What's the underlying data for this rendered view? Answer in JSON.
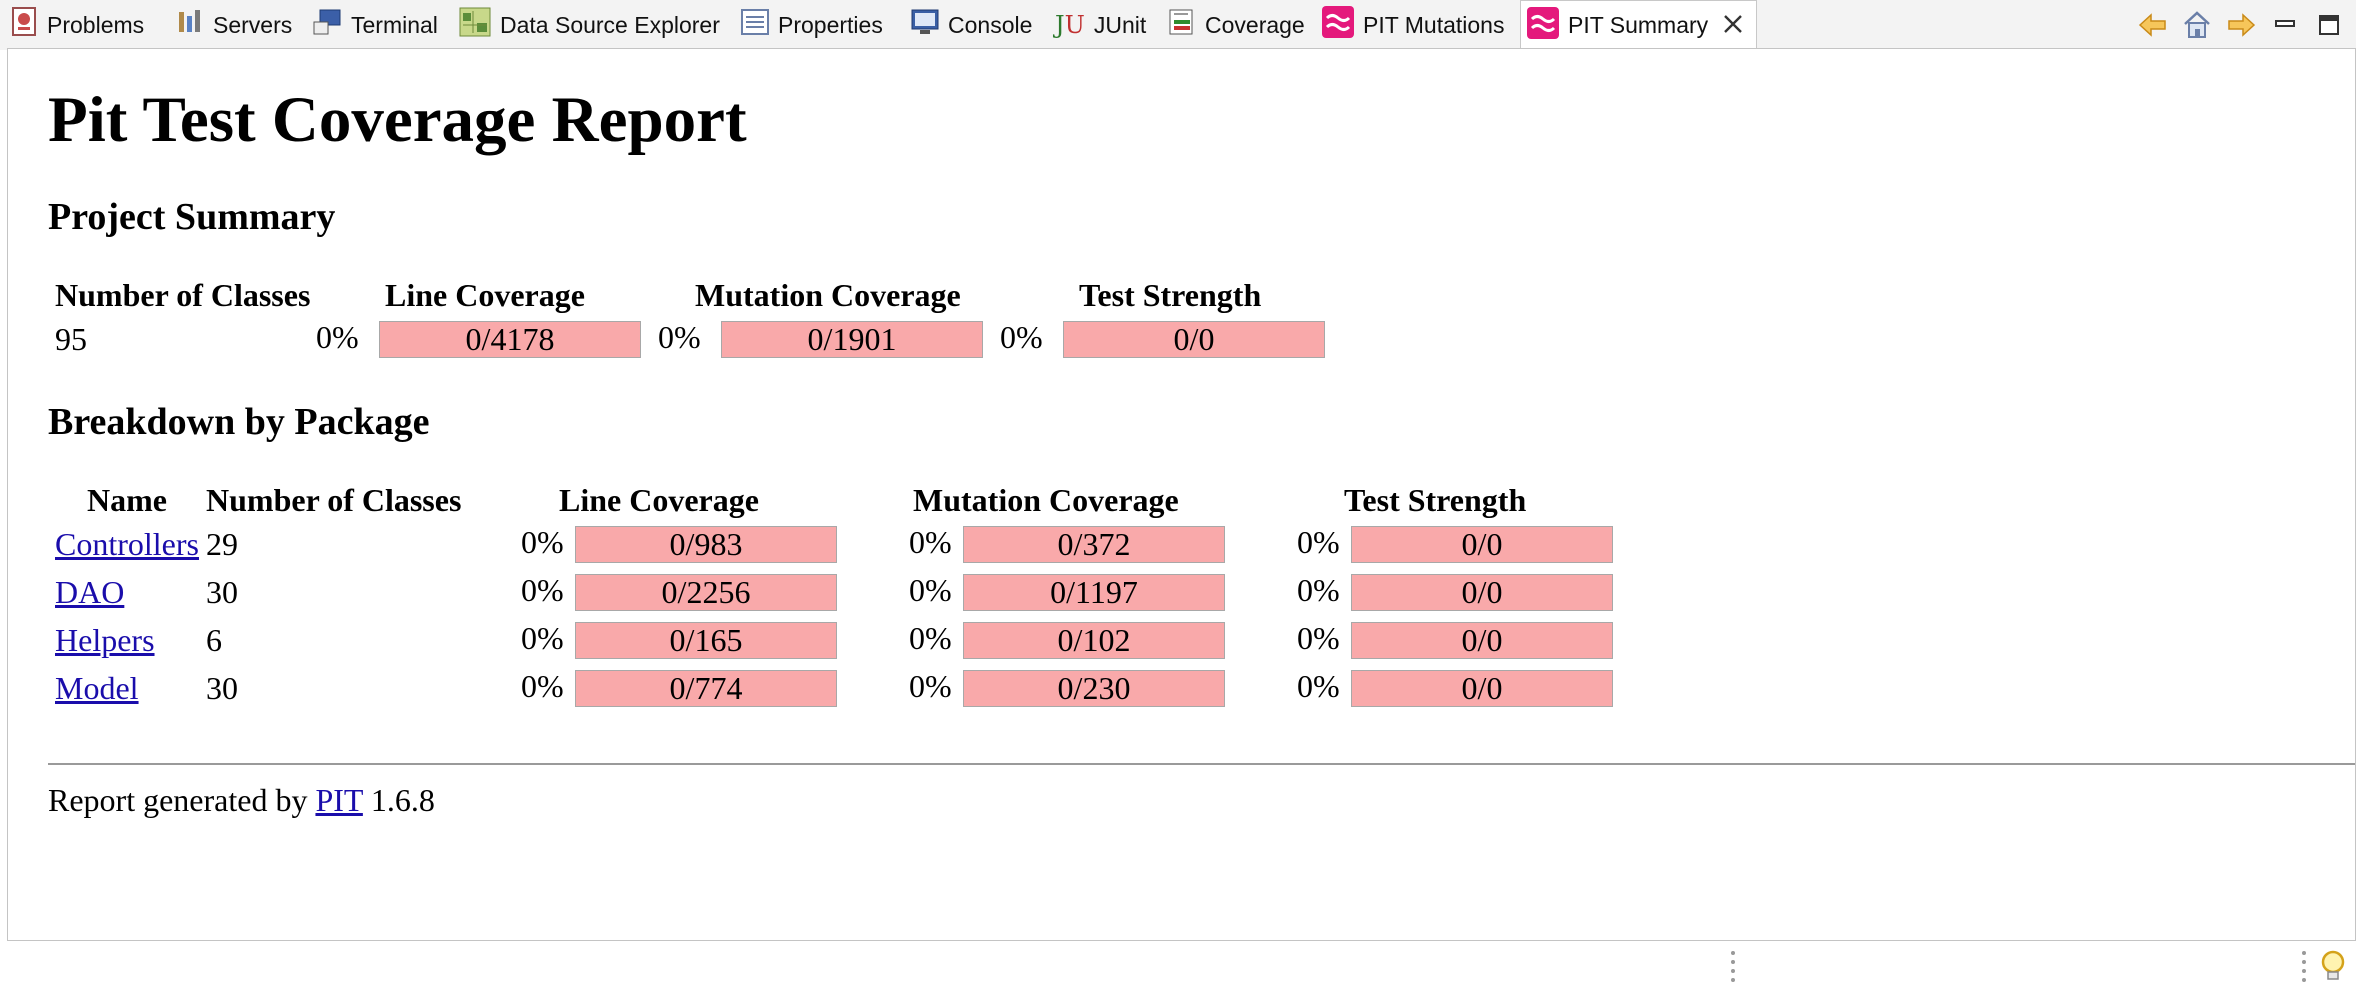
{
  "tabs": [
    {
      "label": "Problems",
      "icon": "problems-icon"
    },
    {
      "label": "Servers",
      "icon": "servers-icon"
    },
    {
      "label": "Terminal",
      "icon": "terminal-icon"
    },
    {
      "label": "Data Source Explorer",
      "icon": "data-source-explorer-icon"
    },
    {
      "label": "Properties",
      "icon": "properties-icon"
    },
    {
      "label": "Console",
      "icon": "console-icon"
    },
    {
      "label": "JUnit",
      "icon": "junit-icon"
    },
    {
      "label": "Coverage",
      "icon": "coverage-icon"
    },
    {
      "label": "PIT Mutations",
      "icon": "pit-icon"
    },
    {
      "label": "PIT Summary",
      "icon": "pit-icon",
      "active": true
    }
  ],
  "toolbar": {
    "icons": [
      "back-arrow-icon",
      "home-icon",
      "forward-arrow-icon",
      "minimize-icon",
      "maximize-icon"
    ]
  },
  "report": {
    "title": "Pit Test Coverage Report",
    "project_summary": {
      "heading": "Project Summary",
      "headers": [
        "Number of Classes",
        "Line Coverage",
        "Mutation Coverage",
        "Test Strength"
      ],
      "num_classes": "95",
      "line": {
        "pct": "0%",
        "ratio": "0/4178"
      },
      "mutation": {
        "pct": "0%",
        "ratio": "0/1901"
      },
      "strength": {
        "pct": "0%",
        "ratio": "0/0"
      }
    },
    "breakdown": {
      "heading": "Breakdown by Package",
      "headers": [
        "Name",
        "Number of Classes",
        "Line Coverage",
        "Mutation Coverage",
        "Test Strength"
      ],
      "rows": [
        {
          "name": "Controllers",
          "classes": "29",
          "line_pct": "0%",
          "line": "0/983",
          "mut_pct": "0%",
          "mut": "0/372",
          "str_pct": "0%",
          "str": "0/0"
        },
        {
          "name": "DAO",
          "classes": "30",
          "line_pct": "0%",
          "line": "0/2256",
          "mut_pct": "0%",
          "mut": "0/1197",
          "str_pct": "0%",
          "str": "0/0"
        },
        {
          "name": "Helpers",
          "classes": "6",
          "line_pct": "0%",
          "line": "0/165",
          "mut_pct": "0%",
          "mut": "0/102",
          "str_pct": "0%",
          "str": "0/0"
        },
        {
          "name": "Model",
          "classes": "30",
          "line_pct": "0%",
          "line": "0/774",
          "mut_pct": "0%",
          "mut": "0/230",
          "str_pct": "0%",
          "str": "0/0"
        }
      ]
    },
    "footer": {
      "prefix": "Report generated by",
      "link": "PIT",
      "version": "1.6.8"
    }
  },
  "colors": {
    "bar_fill": "#f9a9aa",
    "link": "#1a0dab",
    "pit_icon": "#e4197c"
  }
}
